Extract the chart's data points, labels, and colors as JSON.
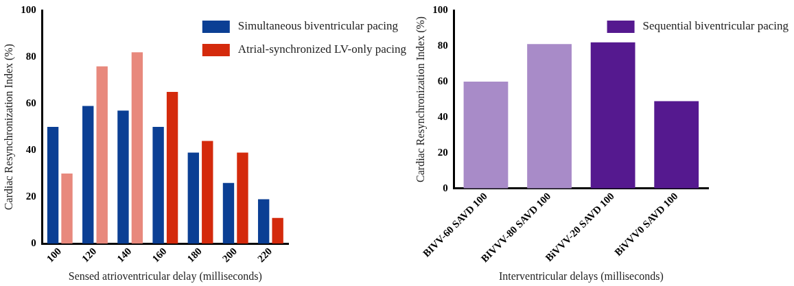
{
  "chart_data": [
    {
      "type": "bar",
      "xlabel": "Sensed atrioventricular delay (milliseconds)",
      "ylabel": "Cardiac Resynchronization Index (%)",
      "categories": [
        "100",
        "120",
        "140",
        "160",
        "180",
        "200",
        "220"
      ],
      "series": [
        {
          "name": "Simultaneous biventricular pacing",
          "color": "#0b3f94",
          "values": [
            50,
            59,
            57,
            50,
            39,
            26,
            19
          ]
        },
        {
          "name": "Atrial-synchronized LV-only pacing",
          "color": "#d42a0c",
          "colors": [
            "#e8897d",
            "#e8897d",
            "#e8897d",
            "#d42a0c",
            "#d42a0c",
            "#d42a0c",
            "#d42a0c"
          ],
          "values": [
            30,
            76,
            82,
            65,
            44,
            39,
            11
          ]
        }
      ],
      "ylim": [
        0,
        100
      ],
      "yticks": [
        0,
        20,
        40,
        60,
        80,
        100
      ],
      "grid": false,
      "legend": "top right"
    },
    {
      "type": "bar",
      "xlabel": "Interventricular delays (milliseconds)",
      "ylabel": "Cardiac Resynchronization Index (%)",
      "categories": [
        "BIVV-60 SAVD 100",
        "BIVVV-80 SAVD 100",
        "BiVVV-20 SAVD 100",
        "BiVVV0 SAVD 100"
      ],
      "series": [
        {
          "name": "Sequential biventricular pacing",
          "color": "#55198f",
          "colors": [
            "#a88bc8",
            "#a88bc8",
            "#55198f",
            "#55198f"
          ],
          "values": [
            60,
            81,
            82,
            49
          ]
        }
      ],
      "ylim": [
        0,
        100
      ],
      "yticks": [
        0,
        20,
        40,
        60,
        80,
        100
      ],
      "grid": false,
      "legend": "top right"
    }
  ]
}
